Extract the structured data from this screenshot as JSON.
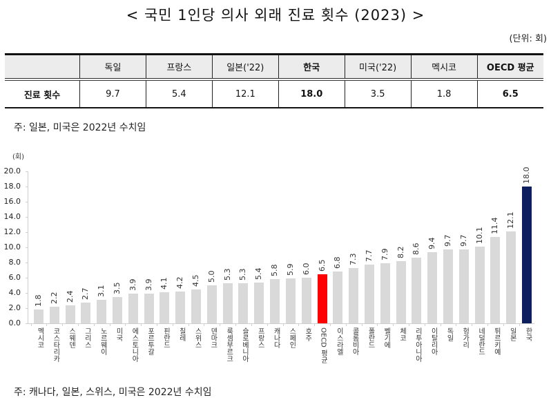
{
  "header": {
    "title": "< 국민 1인당 의사 외래 진료 횟수 (2023) >",
    "unit": "(단위: 회)"
  },
  "table": {
    "columns": [
      "",
      "독일",
      "프랑스",
      "일본('22)",
      "한국",
      "미국('22)",
      "멕시코",
      "OECD 평균"
    ],
    "row_label": "진료 횟수",
    "values": [
      "9.7",
      "5.4",
      "12.1",
      "18.0",
      "3.5",
      "1.8",
      "6.5"
    ],
    "bold_columns": [
      4,
      7
    ]
  },
  "notes": {
    "table_note": "주: 일본, 미국은 2022년 수치임",
    "chart_note": "주: 캐나다, 일본, 스위스, 미국은 2022년 수치임"
  },
  "colors": {
    "bar_default": "#d9d9d9",
    "bar_oecd": "#ff0000",
    "bar_korea": "#0d1f5c"
  },
  "chart_data": {
    "type": "bar",
    "title": "",
    "ylabel": "(회)",
    "xlabel": "",
    "ylim": [
      0,
      20
    ],
    "yticks": [
      "0.0",
      "2.0",
      "4.0",
      "6.0",
      "8.0",
      "10.0",
      "12.0",
      "14.0",
      "16.0",
      "18.0",
      "20.0"
    ],
    "grid": false,
    "legend": null,
    "categories": [
      "멕시코",
      "코스타리카",
      "스웨덴",
      "그리스",
      "노르웨이",
      "미국",
      "에스토니아",
      "포르투갈",
      "핀란드",
      "칠레",
      "스위스",
      "덴마크",
      "룩셈부르크",
      "슬로베니아",
      "프랑스",
      "캐나다",
      "스페인",
      "호주",
      "OECD 평균",
      "이스라엘",
      "콜롬비아",
      "폴란드",
      "벨기에",
      "체코",
      "리투아니아",
      "이탈리아",
      "독일",
      "헝가리",
      "네덜란드",
      "튀르키예",
      "일본",
      "한국"
    ],
    "values": [
      1.8,
      2.2,
      2.4,
      2.7,
      3.1,
      3.5,
      3.9,
      3.9,
      4.1,
      4.2,
      4.5,
      5.0,
      5.3,
      5.3,
      5.4,
      5.8,
      5.9,
      6.0,
      6.5,
      6.8,
      7.3,
      7.7,
      7.9,
      8.2,
      8.6,
      9.4,
      9.7,
      9.7,
      10.1,
      11.4,
      12.1,
      18.0
    ],
    "value_labels": [
      "1.8",
      "2.2",
      "2.4",
      "2.7",
      "3.1",
      "3.5",
      "3.9",
      "3.9",
      "4.1",
      "4.2",
      "4.5",
      "5.0",
      "5.3",
      "5.3",
      "5.4",
      "5.8",
      "5.9",
      "6.0",
      "6.5",
      "6.8",
      "7.3",
      "7.7",
      "7.9",
      "8.2",
      "8.6",
      "9.4",
      "9.7",
      "9.7",
      "10.1",
      "11.4",
      "12.1",
      "18.0"
    ],
    "highlights": {
      "OECD 평균": "#ff0000",
      "한국": "#0d1f5c"
    }
  }
}
